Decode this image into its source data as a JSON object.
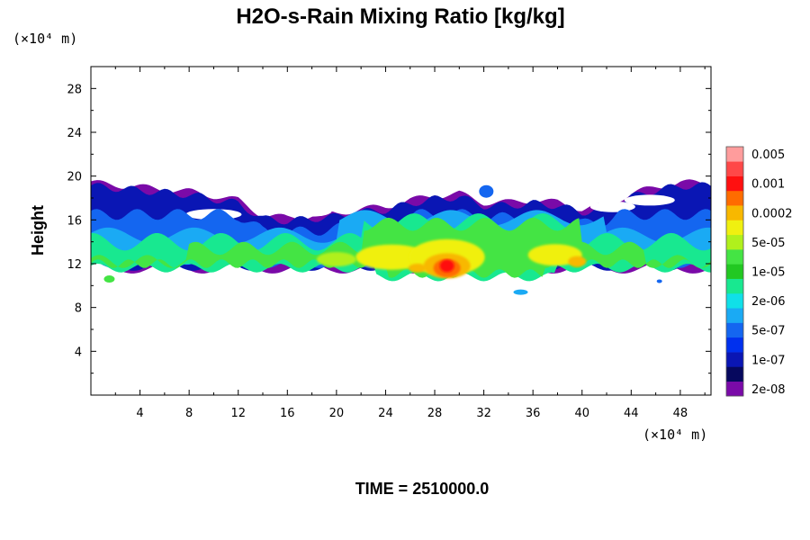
{
  "chart_data": {
    "type": "heatmap",
    "title": "H2O-s-Rain Mixing Ratio [kg/kg]",
    "ylabel": "Height",
    "xlabel": "",
    "x_unit": "(×10⁴ m)",
    "y_unit": "(×10⁴ m)",
    "xlim": [
      0,
      50.5
    ],
    "ylim": [
      0,
      30
    ],
    "x_ticks": [
      4,
      8,
      12,
      16,
      20,
      24,
      28,
      32,
      36,
      40,
      44,
      48
    ],
    "y_ticks": [
      4,
      8,
      12,
      16,
      20,
      24,
      28
    ],
    "x_tick_labels": [
      "4",
      "8",
      "12",
      "16",
      "20",
      "24",
      "28",
      "32",
      "36",
      "40",
      "44",
      "48"
    ],
    "y_tick_labels": [
      "4",
      "8",
      "12",
      "16",
      "20",
      "24",
      "28"
    ],
    "colorbar": {
      "colors": [
        "#7a0aa8",
        "#06085e",
        "#0a16b4",
        "#0030ee",
        "#1466f0",
        "#1aaaf4",
        "#10e0e8",
        "#18e890",
        "#22c822",
        "#44e444",
        "#b0f01c",
        "#f0f010",
        "#f8b800",
        "#ff6c00",
        "#ff1010",
        "#ff4848",
        "#ff9c9c"
      ],
      "labels": [
        "2e-08",
        "1e-07",
        "5e-07",
        "2e-06",
        "1e-05",
        "5e-05",
        "0.0002",
        "0.001",
        "0.005"
      ]
    },
    "time_label": "TIME = 2510000.0",
    "field_summary": {
      "ice_top_x": [
        0,
        4,
        8,
        12,
        14,
        16,
        18,
        20,
        22,
        24,
        26,
        28,
        30,
        32,
        34,
        36,
        38,
        40,
        42,
        44,
        46,
        48,
        50.5
      ],
      "ice_top_y": [
        19.2,
        18.8,
        18.4,
        17.6,
        16.2,
        16.0,
        16.2,
        16.4,
        16.8,
        17.0,
        17.6,
        18.0,
        18.2,
        17.4,
        17.4,
        17.6,
        17.4,
        16.8,
        17.2,
        18.2,
        18.8,
        19.2,
        19.2
      ],
      "core_x": [
        29
      ],
      "core_y": [
        11.6
      ]
    }
  }
}
